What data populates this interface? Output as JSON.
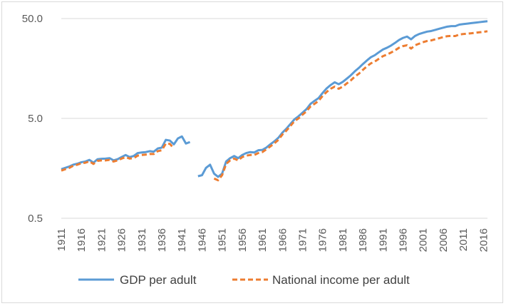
{
  "chart_data": {
    "type": "line",
    "title": "",
    "xlabel": "",
    "ylabel": "",
    "y_scale": "log",
    "ylim": [
      0.5,
      50
    ],
    "xlim": [
      1911,
      2017
    ],
    "y_ticks": [
      "50.0",
      "5.0",
      "0.5"
    ],
    "y_tick_values": [
      50,
      5,
      0.5
    ],
    "x_ticks": [
      1911,
      1916,
      1921,
      1926,
      1931,
      1936,
      1941,
      1946,
      1951,
      1956,
      1961,
      1966,
      1971,
      1976,
      1981,
      1986,
      1991,
      1996,
      2001,
      2006,
      2011,
      2016
    ],
    "grid": true,
    "legend_position": "bottom",
    "colors": {
      "gdp": "#5b9bd5",
      "ni": "#ed7d31",
      "grid": "#d9d9d9",
      "text": "#595959"
    },
    "series": [
      {
        "name": "GDP per adult",
        "style": "solid",
        "segments": [
          [
            [
              1911,
              1.55
            ],
            [
              1912,
              1.6
            ],
            [
              1913,
              1.65
            ],
            [
              1914,
              1.72
            ],
            [
              1915,
              1.76
            ],
            [
              1916,
              1.82
            ],
            [
              1917,
              1.85
            ],
            [
              1918,
              1.92
            ],
            [
              1919,
              1.8
            ],
            [
              1920,
              1.95
            ],
            [
              1921,
              1.97
            ],
            [
              1922,
              1.98
            ],
            [
              1923,
              2.0
            ],
            [
              1924,
              1.9
            ],
            [
              1925,
              1.95
            ],
            [
              1926,
              2.05
            ],
            [
              1927,
              2.15
            ],
            [
              1928,
              2.05
            ],
            [
              1929,
              2.1
            ],
            [
              1930,
              2.25
            ],
            [
              1931,
              2.28
            ],
            [
              1932,
              2.3
            ],
            [
              1933,
              2.35
            ],
            [
              1934,
              2.32
            ],
            [
              1935,
              2.5
            ],
            [
              1936,
              2.55
            ],
            [
              1937,
              3.05
            ],
            [
              1938,
              3.0
            ],
            [
              1939,
              2.75
            ],
            [
              1940,
              3.15
            ],
            [
              1941,
              3.3
            ],
            [
              1942,
              2.8
            ],
            [
              1943,
              2.9
            ]
          ],
          [
            [
              1945,
              1.32
            ],
            [
              1946,
              1.35
            ],
            [
              1947,
              1.6
            ],
            [
              1948,
              1.72
            ],
            [
              1949,
              1.4
            ],
            [
              1950,
              1.3
            ],
            [
              1951,
              1.4
            ],
            [
              1952,
              1.85
            ],
            [
              1953,
              2.0
            ],
            [
              1954,
              2.1
            ],
            [
              1955,
              2.0
            ],
            [
              1956,
              2.15
            ],
            [
              1957,
              2.25
            ],
            [
              1958,
              2.3
            ],
            [
              1959,
              2.28
            ],
            [
              1960,
              2.4
            ],
            [
              1961,
              2.42
            ],
            [
              1962,
              2.55
            ],
            [
              1963,
              2.75
            ],
            [
              1964,
              2.95
            ],
            [
              1965,
              3.2
            ],
            [
              1966,
              3.6
            ],
            [
              1967,
              3.95
            ],
            [
              1968,
              4.4
            ],
            [
              1969,
              4.9
            ],
            [
              1970,
              5.25
            ],
            [
              1971,
              5.7
            ],
            [
              1972,
              6.2
            ],
            [
              1973,
              7.0
            ],
            [
              1974,
              7.5
            ],
            [
              1975,
              8.0
            ],
            [
              1976,
              9.0
            ],
            [
              1977,
              10.0
            ],
            [
              1978,
              10.8
            ],
            [
              1979,
              11.5
            ],
            [
              1980,
              11.0
            ],
            [
              1981,
              11.6
            ],
            [
              1982,
              12.5
            ],
            [
              1983,
              13.5
            ],
            [
              1984,
              14.8
            ],
            [
              1985,
              16.0
            ],
            [
              1986,
              17.5
            ],
            [
              1987,
              19.0
            ],
            [
              1988,
              20.5
            ],
            [
              1989,
              21.5
            ],
            [
              1990,
              23.0
            ],
            [
              1991,
              24.5
            ],
            [
              1992,
              25.5
            ],
            [
              1993,
              26.8
            ],
            [
              1994,
              28.5
            ],
            [
              1995,
              30.5
            ],
            [
              1996,
              32.0
            ],
            [
              1997,
              33.0
            ],
            [
              1998,
              31.0
            ],
            [
              1999,
              33.5
            ],
            [
              2000,
              35.0
            ],
            [
              2001,
              36.0
            ],
            [
              2002,
              37.0
            ],
            [
              2003,
              37.5
            ],
            [
              2004,
              38.5
            ],
            [
              2005,
              39.5
            ],
            [
              2006,
              40.5
            ],
            [
              2007,
              41.5
            ],
            [
              2008,
              42.0
            ],
            [
              2009,
              42.0
            ],
            [
              2010,
              43.5
            ],
            [
              2011,
              44.0
            ],
            [
              2012,
              44.5
            ],
            [
              2013,
              45.0
            ],
            [
              2014,
              45.5
            ],
            [
              2015,
              46.0
            ],
            [
              2016,
              46.5
            ],
            [
              2017,
              47.0
            ]
          ]
        ]
      },
      {
        "name": "National income per adult",
        "style": "dashed",
        "segments": [
          [
            [
              1911,
              1.5
            ],
            [
              1912,
              1.55
            ],
            [
              1913,
              1.6
            ],
            [
              1914,
              1.68
            ],
            [
              1915,
              1.72
            ],
            [
              1916,
              1.78
            ],
            [
              1917,
              1.8
            ],
            [
              1918,
              1.86
            ],
            [
              1919,
              1.75
            ],
            [
              1920,
              1.88
            ],
            [
              1921,
              1.9
            ],
            [
              1922,
              1.9
            ],
            [
              1923,
              1.92
            ],
            [
              1924,
              1.85
            ],
            [
              1925,
              1.9
            ],
            [
              1926,
              1.98
            ],
            [
              1927,
              2.05
            ],
            [
              1928,
              1.98
            ],
            [
              1929,
              2.0
            ],
            [
              1930,
              2.12
            ],
            [
              1931,
              2.15
            ],
            [
              1932,
              2.17
            ],
            [
              1933,
              2.2
            ],
            [
              1934,
              2.2
            ],
            [
              1935,
              2.35
            ],
            [
              1936,
              2.4
            ],
            [
              1937,
              2.8
            ],
            [
              1938,
              2.78
            ],
            [
              1939,
              2.5
            ]
          ],
          [
            [
              1949,
              1.25
            ],
            [
              1950,
              1.2
            ],
            [
              1951,
              1.35
            ],
            [
              1952,
              1.75
            ],
            [
              1953,
              1.9
            ],
            [
              1954,
              1.98
            ],
            [
              1955,
              1.9
            ],
            [
              1956,
              2.05
            ],
            [
              1957,
              2.12
            ],
            [
              1958,
              2.15
            ],
            [
              1959,
              2.15
            ],
            [
              1960,
              2.25
            ],
            [
              1961,
              2.3
            ],
            [
              1962,
              2.45
            ],
            [
              1963,
              2.62
            ],
            [
              1964,
              2.82
            ],
            [
              1965,
              3.05
            ],
            [
              1966,
              3.45
            ],
            [
              1967,
              3.78
            ],
            [
              1968,
              4.2
            ],
            [
              1969,
              4.7
            ],
            [
              1970,
              5.0
            ],
            [
              1971,
              5.45
            ],
            [
              1972,
              5.9
            ],
            [
              1973,
              6.6
            ],
            [
              1974,
              7.0
            ],
            [
              1975,
              7.5
            ],
            [
              1976,
              8.4
            ],
            [
              1977,
              9.2
            ],
            [
              1978,
              9.9
            ],
            [
              1979,
              10.4
            ],
            [
              1980,
              9.9
            ],
            [
              1981,
              10.4
            ],
            [
              1982,
              11.2
            ],
            [
              1983,
              12.0
            ],
            [
              1984,
              13.1
            ],
            [
              1985,
              14.0
            ],
            [
              1986,
              15.3
            ],
            [
              1987,
              16.6
            ],
            [
              1988,
              17.8
            ],
            [
              1989,
              18.6
            ],
            [
              1990,
              19.8
            ],
            [
              1991,
              21.0
            ],
            [
              1992,
              21.8
            ],
            [
              1993,
              22.8
            ],
            [
              1994,
              24.0
            ],
            [
              1995,
              25.5
            ],
            [
              1996,
              26.5
            ],
            [
              1997,
              27.0
            ],
            [
              1998,
              25.0
            ],
            [
              1999,
              27.0
            ],
            [
              2000,
              28.0
            ],
            [
              2001,
              29.0
            ],
            [
              2002,
              29.8
            ],
            [
              2003,
              30.2
            ],
            [
              2004,
              31.0
            ],
            [
              2005,
              31.8
            ],
            [
              2006,
              32.6
            ],
            [
              2007,
              33.3
            ],
            [
              2008,
              33.5
            ],
            [
              2009,
              33.4
            ],
            [
              2010,
              34.6
            ],
            [
              2011,
              35.0
            ],
            [
              2012,
              35.3
            ],
            [
              2013,
              35.6
            ],
            [
              2014,
              36.0
            ],
            [
              2015,
              36.4
            ],
            [
              2016,
              36.8
            ],
            [
              2017,
              37.3
            ]
          ]
        ]
      }
    ]
  }
}
